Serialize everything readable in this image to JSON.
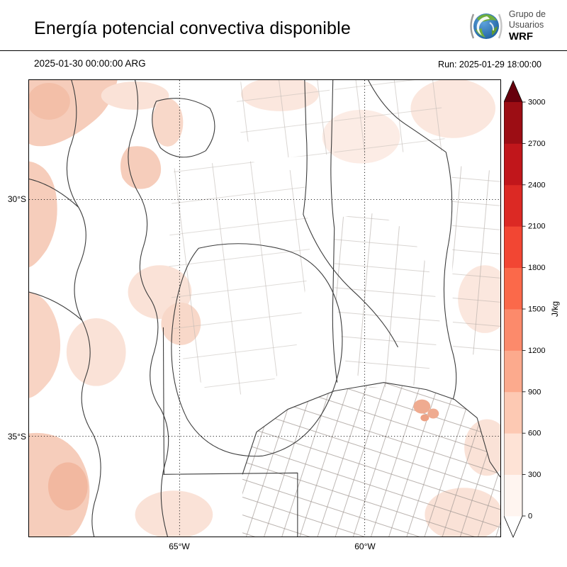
{
  "header": {
    "title": "Energía potencial convectiva disponible",
    "valid_time": "2025-01-30 00:00:00 ARG",
    "run_label": "Run: 2025-01-29 18:00:00",
    "logo": {
      "line1": "Grupo de",
      "line2": "Usuarios",
      "line3": "WRF"
    }
  },
  "map": {
    "lat_ticks": [
      "30°S",
      "35°S"
    ],
    "lon_ticks": [
      "65°W",
      "60°W"
    ]
  },
  "colorbar": {
    "unit": "J/kg",
    "tick_labels": [
      "0",
      "300",
      "600",
      "900",
      "1200",
      "1500",
      "1800",
      "2100",
      "2400",
      "2700",
      "3000"
    ],
    "segment_colors": [
      "#fff5f0",
      "#fee3d6",
      "#fdc9b3",
      "#fcaa8d",
      "#fc8a6b",
      "#fb694a",
      "#f24633",
      "#dc2924",
      "#c1161b",
      "#9c0d14"
    ],
    "under_color": "#ffffff",
    "over_color": "#67000d"
  },
  "chart_data": {
    "type": "heatmap",
    "title": "Energía potencial convectiva disponible",
    "valid_time": "2025-01-30 00:00:00 ARG",
    "run": "Run: 2025-01-29 18:00:00",
    "unit": "J/kg",
    "levels": [
      0,
      300,
      600,
      900,
      1200,
      1500,
      1800,
      2100,
      2400,
      2700,
      3000
    ],
    "colors": [
      "#fff5f0",
      "#fee3d6",
      "#fdc9b3",
      "#fcaa8d",
      "#fc8a6b",
      "#fb694a",
      "#f24633",
      "#dc2924",
      "#c1161b",
      "#9c0d14"
    ],
    "lat_ticks": [
      "30°S",
      "35°S"
    ],
    "lon_ticks": [
      "65°W",
      "60°W"
    ],
    "legend_position": "right",
    "notes": "CAPE field mostly near 0 (white) with scattered values ~0-600 J/kg (light pink) over western Andes foothills, northwest, southwest and near Buenos Aires"
  }
}
